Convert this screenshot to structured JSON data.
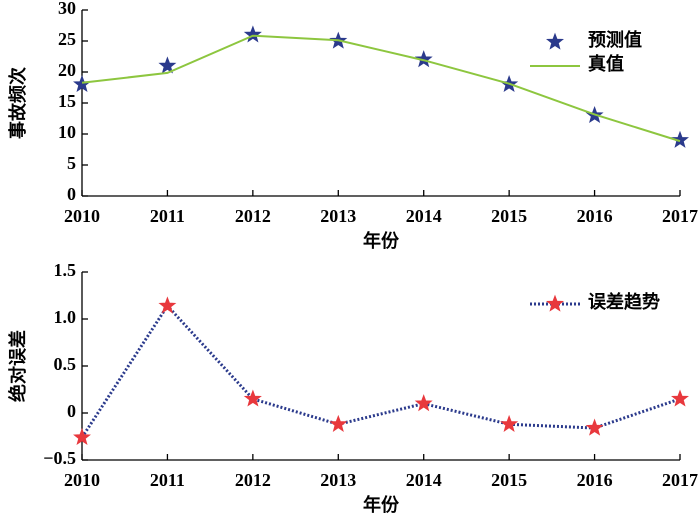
{
  "chart_data": [
    {
      "type": "line",
      "y_label": "事故频次",
      "x_label": "年份",
      "categories": [
        "2010",
        "2011",
        "2012",
        "2013",
        "2014",
        "2015",
        "2016",
        "2017"
      ],
      "ylim": [
        0,
        30
      ],
      "yticks": [
        0,
        5,
        10,
        15,
        20,
        25,
        30
      ],
      "legend": "upper right",
      "series": [
        {
          "name": "预测值",
          "color": "#2b3a8c",
          "style": "markers",
          "marker": "star",
          "values": [
            18,
            21,
            26,
            25,
            22,
            18,
            13,
            9
          ]
        },
        {
          "name": "真值",
          "color": "#8dc63f",
          "style": "line",
          "values": [
            18.26,
            19.86,
            25.85,
            25.12,
            21.9,
            18.12,
            13.16,
            8.85
          ]
        }
      ]
    },
    {
      "type": "line",
      "y_label": "绝对误差",
      "x_label": "年份",
      "categories": [
        "2010",
        "2011",
        "2012",
        "2013",
        "2014",
        "2015",
        "2016",
        "2017"
      ],
      "ylim": [
        -0.5,
        1.5
      ],
      "yticks": [
        {
          "value": -0.5,
          "label": "−0.5"
        },
        0,
        0.5,
        {
          "value": 1,
          "label": "1.0"
        },
        1.5
      ],
      "legend": "upper right",
      "series": [
        {
          "name": "误差趋势",
          "color": "#2b3a8c",
          "style": "dotted-line-markers",
          "marker": "star",
          "marker_color": "#e8383d",
          "values": [
            -0.26,
            1.14,
            0.15,
            -0.12,
            0.1,
            -0.12,
            -0.16,
            0.15
          ]
        }
      ]
    }
  ]
}
